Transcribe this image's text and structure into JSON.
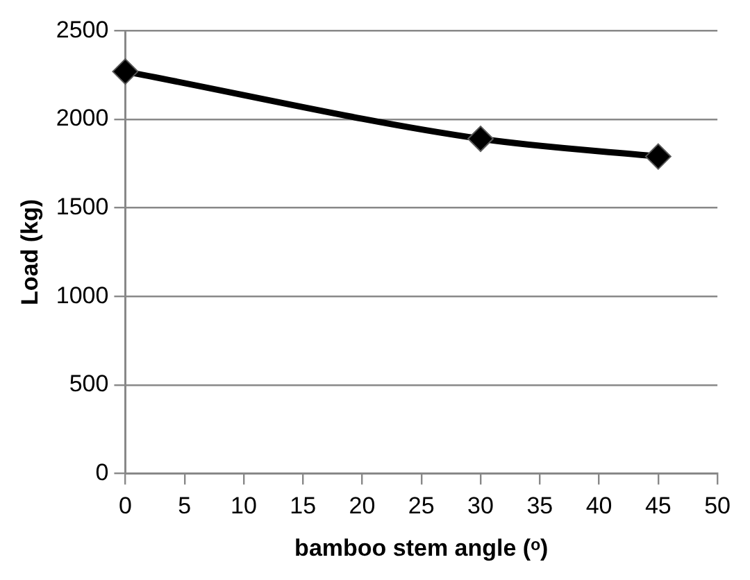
{
  "chart_data": {
    "type": "line",
    "xlabel": "bamboo stem angle (ᵒ)",
    "ylabel": "Load (kg)",
    "x": [
      0,
      30,
      45
    ],
    "series": [
      {
        "color": "#000000",
        "values": [
          2270,
          1890,
          1790
        ]
      }
    ],
    "xlim": [
      0,
      50
    ],
    "xticks": [
      0,
      5,
      10,
      15,
      20,
      25,
      30,
      35,
      40,
      45,
      50
    ],
    "ylim": [
      0,
      2500
    ],
    "yticks": [
      0,
      500,
      1000,
      1500,
      2000,
      2500
    ],
    "grid": "y",
    "legend": false,
    "marker": "diamond",
    "line_style": "solid"
  }
}
